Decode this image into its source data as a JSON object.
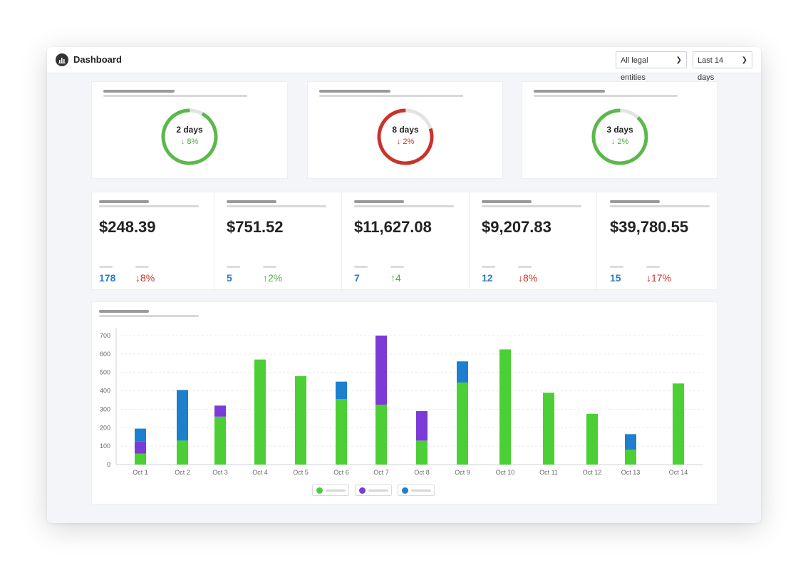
{
  "header": {
    "title": "Dashboard",
    "entity_select": "All legal entities",
    "range_select": "Last 14 days"
  },
  "donuts": [
    {
      "value": "2 days",
      "delta": "↓ 8%",
      "status": "good",
      "fraction": 0.92
    },
    {
      "value": "8 days",
      "delta": "↓ 2%",
      "status": "bad",
      "fraction": 0.8
    },
    {
      "value": "3 days",
      "delta": "↓ 2%",
      "status": "good",
      "fraction": 0.88
    }
  ],
  "metrics": [
    {
      "amount": "$248.39",
      "count": "178",
      "delta": "↓8%",
      "trend": "down"
    },
    {
      "amount": "$751.52",
      "count": "5",
      "delta": "↑2%",
      "trend": "up"
    },
    {
      "amount": "$11,627.08",
      "count": "7",
      "delta": "↑4",
      "trend": "up"
    },
    {
      "amount": "$9,207.83",
      "count": "12",
      "delta": "↓8%",
      "trend": "down"
    },
    {
      "amount": "$39,780.55",
      "count": "15",
      "delta": "↓17%",
      "trend": "down"
    }
  ],
  "colors": {
    "green": "#4ccf35",
    "purple": "#7b3bd6",
    "blue": "#1e7fcf",
    "good_ring": "#5bb84a",
    "bad_ring": "#c9332a",
    "track": "#e3e3e3"
  },
  "chart_data": {
    "type": "bar",
    "stacked": true,
    "categories": [
      "Oct 1",
      "Oct 2",
      "Oct 3",
      "Oct 4",
      "Oct 5",
      "Oct 6",
      "Oct 7",
      "Oct 8",
      "Oct 9",
      "Oct 10",
      "Oct 11",
      "Oct 12",
      "Oct 13",
      "Oct 14"
    ],
    "series": [
      {
        "color": "#4ccf35",
        "values": [
          60,
          130,
          260,
          570,
          480,
          355,
          325,
          130,
          445,
          625,
          390,
          275,
          80,
          440
        ]
      },
      {
        "color": "#7b3bd6",
        "values": [
          65,
          0,
          60,
          0,
          0,
          0,
          375,
          160,
          0,
          0,
          0,
          0,
          0,
          0
        ]
      },
      {
        "color": "#1e7fcf",
        "values": [
          70,
          275,
          0,
          0,
          0,
          95,
          0,
          0,
          115,
          0,
          0,
          0,
          85,
          0
        ]
      }
    ],
    "yticks": [
      0,
      100,
      200,
      300,
      400,
      500,
      600,
      700
    ],
    "ylim": [
      0,
      720
    ],
    "grid": true,
    "legend": "bottom-center"
  }
}
